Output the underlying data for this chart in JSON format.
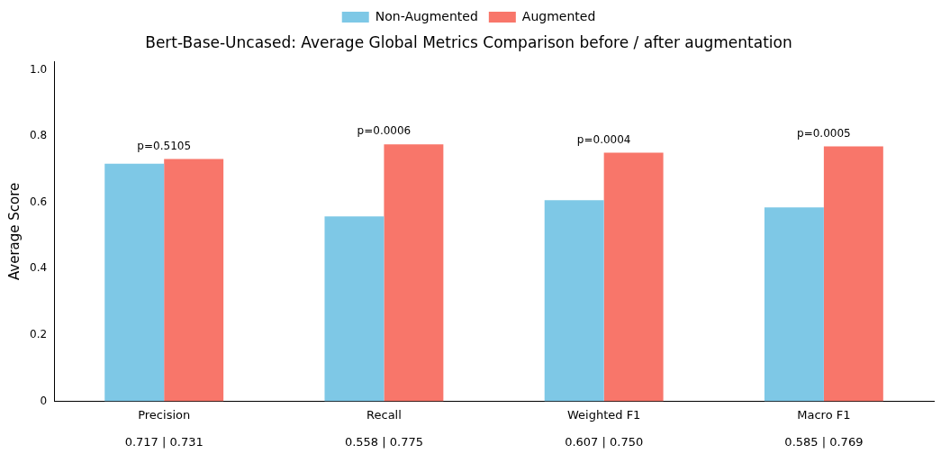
{
  "chart_data": {
    "type": "bar",
    "title": "Bert-Base-Uncased: Average Global Metrics Comparison before / after augmentation",
    "ylabel": "Average Score",
    "categories": [
      "Precision",
      "Recall",
      "Weighted F1",
      "Macro F1"
    ],
    "series": [
      {
        "name": "Non-Augmented",
        "color": "#7ec8e6",
        "values": [
          0.717,
          0.558,
          0.607,
          0.585
        ]
      },
      {
        "name": "Augmented",
        "color": "#f8766a",
        "values": [
          0.731,
          0.775,
          0.75,
          0.769
        ]
      }
    ],
    "ylim": [
      0,
      1.025
    ],
    "yticks": [
      0,
      0.2,
      0.4,
      0.6,
      0.8,
      {
        "value": 1.0,
        "label": "1.0"
      }
    ],
    "grid": false,
    "legend": "top",
    "annotations": [
      "p=0.5105",
      "p=0.0006",
      "p=0.0004",
      "p=0.0005",
      "0.717 | 0.731",
      "0.558 | 0.775",
      "0.607 | 0.750",
      "0.585 | 0.769"
    ]
  }
}
